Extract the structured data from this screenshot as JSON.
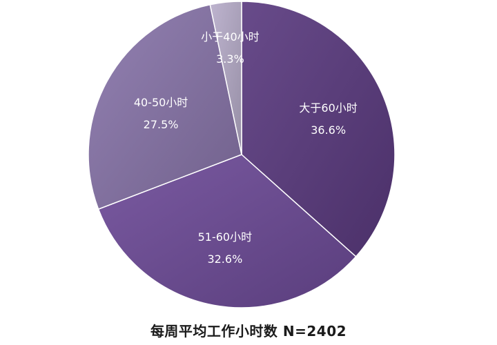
{
  "chart_data": {
    "type": "pie",
    "title": "每周平均工作小时数 N=2402",
    "slices": [
      {
        "label": "大于60小时",
        "value": 36.6,
        "value_label": "36.6%",
        "color": "#5b3b80"
      },
      {
        "label": "51-60小时",
        "value": 32.6,
        "value_label": "32.6%",
        "color": "#6e4c99"
      },
      {
        "label": "40-50小时",
        "value": 27.5,
        "value_label": "27.5%",
        "color": "#8a76ab"
      },
      {
        "label": "小于40小时",
        "value": 3.3,
        "value_label": "3.3%",
        "color": "#b8aecb"
      }
    ],
    "start": "12 o'clock",
    "direction": "clockwise",
    "legend": "none"
  }
}
